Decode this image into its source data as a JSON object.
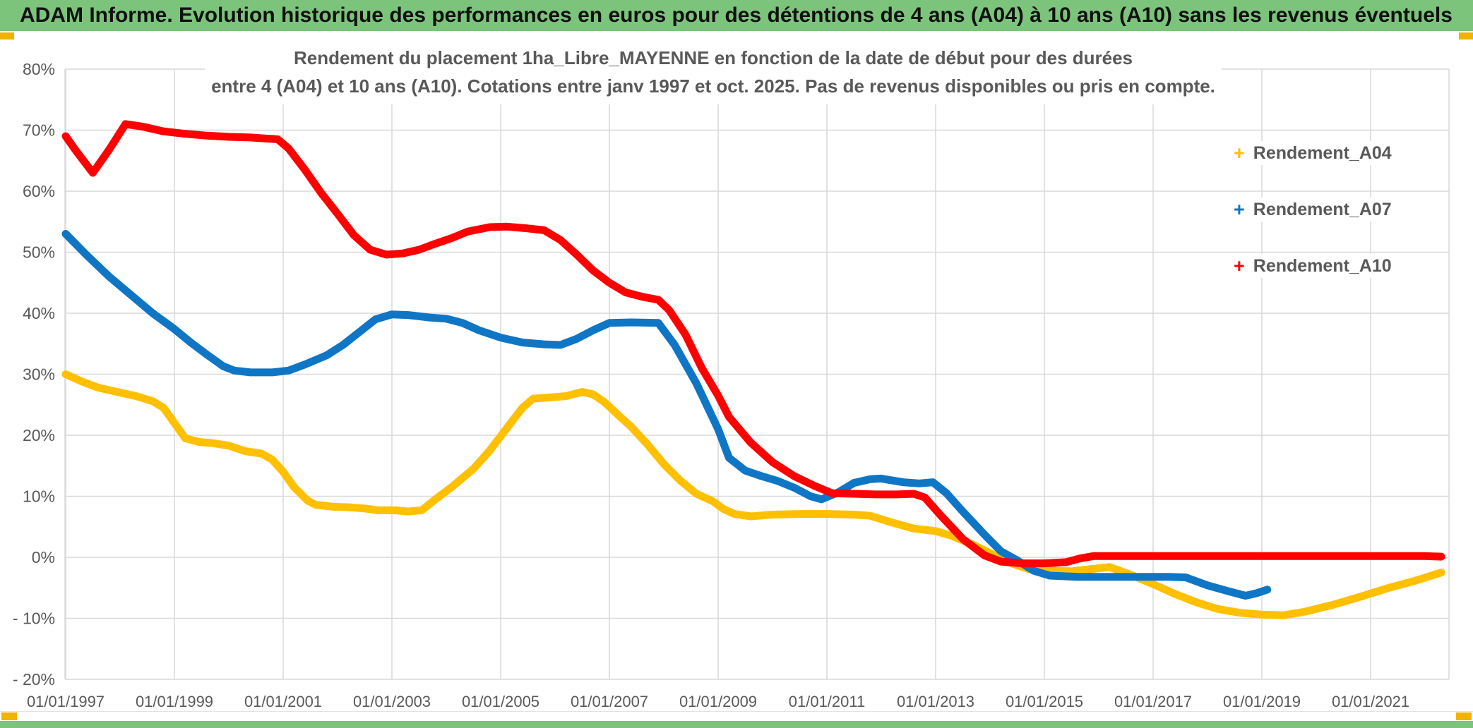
{
  "header": {
    "title": "ADAM Informe. Evolution historique des performances en euros pour des détentions de 4 ans (A04) à 10 ans (A10) sans les revenus éventuels"
  },
  "colors": {
    "titlebar_green": "#7cc47c",
    "accent_gold": "#efb300",
    "grid_gray": "#d9d9d9",
    "axis_text_gray": "#595959",
    "series_a04": "#ffc000",
    "series_a07": "#0f76c6",
    "series_a10": "#ff0000"
  },
  "chart_data": {
    "type": "line",
    "title_lines": [
      "Rendement du placement 1ha_Libre_MAYENNE en fonction de la date de début pour des durées",
      "entre 4 (A04) et 10 ans (A10). Cotations entre janv 1997 et oct. 2025. Pas de revenus disponibles ou pris en compte."
    ],
    "title": "Rendement du placement 1ha_Libre_MAYENNE en fonction de la date de début pour des durées entre 4 (A04) et 10 ans (A10). Cotations entre janv 1997 et oct. 2025. Pas de revenus disponibles ou pris en compte.",
    "grid": true,
    "legend_position": "right",
    "marker": "+",
    "x_axis": {
      "label": "",
      "tick_years": [
        1997,
        1999,
        2001,
        2003,
        2005,
        2007,
        2009,
        2011,
        2013,
        2015,
        2017,
        2019,
        2021
      ],
      "tick_labels": [
        "01/01/1997",
        "01/01/1999",
        "01/01/2001",
        "01/01/2003",
        "01/01/2005",
        "01/01/2007",
        "01/01/2009",
        "01/01/2011",
        "01/01/2013",
        "01/01/2015",
        "01/01/2017",
        "01/01/2019",
        "01/01/2021"
      ],
      "range_years": [
        1997,
        2022.5
      ]
    },
    "y_axis": {
      "label": "",
      "unit": "%",
      "tick_values": [
        80,
        70,
        60,
        50,
        40,
        30,
        20,
        10,
        0,
        -10,
        -20
      ],
      "tick_labels": [
        "80%",
        "70%",
        "60%",
        "50%",
        "40%",
        "30%",
        "20%",
        "10%",
        "0%",
        "- 10%",
        "- 20%"
      ],
      "ylim": [
        -20,
        80
      ]
    },
    "series": [
      {
        "name": "Rendement_A04",
        "color": "#ffc000",
        "points": [
          [
            1997.0,
            30
          ],
          [
            1997.3,
            28.8
          ],
          [
            1997.6,
            27.8
          ],
          [
            1998.0,
            27
          ],
          [
            1998.3,
            26.4
          ],
          [
            1998.6,
            25.6
          ],
          [
            1998.8,
            24.5
          ],
          [
            1999.0,
            22
          ],
          [
            1999.2,
            19.5
          ],
          [
            1999.45,
            18.9
          ],
          [
            1999.7,
            18.7
          ],
          [
            2000.0,
            18.3
          ],
          [
            2000.3,
            17.4
          ],
          [
            2000.6,
            17
          ],
          [
            2000.8,
            16
          ],
          [
            2001.0,
            14
          ],
          [
            2001.2,
            11.5
          ],
          [
            2001.45,
            9.3
          ],
          [
            2001.6,
            8.6
          ],
          [
            2001.9,
            8.3
          ],
          [
            2002.2,
            8.2
          ],
          [
            2002.5,
            8.0
          ],
          [
            2002.75,
            7.7
          ],
          [
            2003.05,
            7.7
          ],
          [
            2003.3,
            7.5
          ],
          [
            2003.55,
            7.7
          ],
          [
            2003.8,
            9.5
          ],
          [
            2004.1,
            11.5
          ],
          [
            2004.5,
            14.5
          ],
          [
            2004.8,
            17.5
          ],
          [
            2005.1,
            21
          ],
          [
            2005.4,
            24.5
          ],
          [
            2005.6,
            26
          ],
          [
            2005.9,
            26.2
          ],
          [
            2006.2,
            26.4
          ],
          [
            2006.5,
            27.1
          ],
          [
            2006.7,
            26.7
          ],
          [
            2006.9,
            25.5
          ],
          [
            2007.2,
            23
          ],
          [
            2007.4,
            21.4
          ],
          [
            2007.7,
            18.5
          ],
          [
            2008.0,
            15.3
          ],
          [
            2008.3,
            12.6
          ],
          [
            2008.6,
            10.4
          ],
          [
            2008.9,
            9.2
          ],
          [
            2009.1,
            7.9
          ],
          [
            2009.3,
            7.1
          ],
          [
            2009.6,
            6.7
          ],
          [
            2010.0,
            7.0
          ],
          [
            2010.5,
            7.1
          ],
          [
            2011.0,
            7.1
          ],
          [
            2011.5,
            7.0
          ],
          [
            2011.8,
            6.8
          ],
          [
            2012.2,
            5.7
          ],
          [
            2012.6,
            4.7
          ],
          [
            2013.0,
            4.3
          ],
          [
            2013.3,
            3.5
          ],
          [
            2013.7,
            2.0
          ],
          [
            2014.0,
            0.7
          ],
          [
            2014.3,
            -0.7
          ],
          [
            2014.7,
            -1.9
          ],
          [
            2015.1,
            -2.2
          ],
          [
            2015.5,
            -2.3
          ],
          [
            2015.9,
            -1.9
          ],
          [
            2016.2,
            -1.6
          ],
          [
            2016.6,
            -2.9
          ],
          [
            2017.0,
            -4.4
          ],
          [
            2017.4,
            -6.0
          ],
          [
            2017.8,
            -7.4
          ],
          [
            2018.2,
            -8.5
          ],
          [
            2018.6,
            -9.1
          ],
          [
            2019.0,
            -9.4
          ],
          [
            2019.4,
            -9.5
          ],
          [
            2019.8,
            -8.9
          ],
          [
            2020.3,
            -7.8
          ],
          [
            2020.8,
            -6.5
          ],
          [
            2021.3,
            -5.1
          ],
          [
            2021.8,
            -3.9
          ],
          [
            2022.3,
            -2.5
          ]
        ]
      },
      {
        "name": "Rendement_A07",
        "color": "#0f76c6",
        "points": [
          [
            1997.0,
            53
          ],
          [
            1997.4,
            49.4
          ],
          [
            1997.8,
            46
          ],
          [
            1998.2,
            43
          ],
          [
            1998.6,
            40
          ],
          [
            1999.0,
            37.4
          ],
          [
            1999.3,
            35.2
          ],
          [
            1999.6,
            33.2
          ],
          [
            1999.9,
            31.3
          ],
          [
            2000.1,
            30.6
          ],
          [
            2000.4,
            30.3
          ],
          [
            2000.8,
            30.3
          ],
          [
            2001.1,
            30.6
          ],
          [
            2001.4,
            31.6
          ],
          [
            2001.8,
            33.1
          ],
          [
            2002.1,
            34.8
          ],
          [
            2002.4,
            36.9
          ],
          [
            2002.7,
            39
          ],
          [
            2003.0,
            39.8
          ],
          [
            2003.3,
            39.7
          ],
          [
            2003.7,
            39.3
          ],
          [
            2004.0,
            39.1
          ],
          [
            2004.3,
            38.4
          ],
          [
            2004.6,
            37.2
          ],
          [
            2005.0,
            36
          ],
          [
            2005.4,
            35.2
          ],
          [
            2005.8,
            34.9
          ],
          [
            2006.1,
            34.8
          ],
          [
            2006.4,
            35.8
          ],
          [
            2006.7,
            37.2
          ],
          [
            2007.0,
            38.4
          ],
          [
            2007.4,
            38.5
          ],
          [
            2007.9,
            38.4
          ],
          [
            2008.2,
            34.8
          ],
          [
            2008.6,
            28.5
          ],
          [
            2009.0,
            21
          ],
          [
            2009.2,
            16.3
          ],
          [
            2009.5,
            14.2
          ],
          [
            2009.8,
            13.3
          ],
          [
            2010.1,
            12.5
          ],
          [
            2010.4,
            11.4
          ],
          [
            2010.7,
            10.0
          ],
          [
            2010.9,
            9.5
          ],
          [
            2011.2,
            10.6
          ],
          [
            2011.5,
            12.2
          ],
          [
            2011.8,
            12.8
          ],
          [
            2012.0,
            12.9
          ],
          [
            2012.4,
            12.3
          ],
          [
            2012.7,
            12.1
          ],
          [
            2012.95,
            12.3
          ],
          [
            2013.2,
            10.5
          ],
          [
            2013.5,
            7.5
          ],
          [
            2013.9,
            3.7
          ],
          [
            2014.2,
            1.0
          ],
          [
            2014.5,
            -0.5
          ],
          [
            2014.8,
            -2.2
          ],
          [
            2015.1,
            -3.0
          ],
          [
            2015.6,
            -3.2
          ],
          [
            2016.2,
            -3.2
          ],
          [
            2016.8,
            -3.2
          ],
          [
            2017.3,
            -3.2
          ],
          [
            2017.6,
            -3.3
          ],
          [
            2018.0,
            -4.6
          ],
          [
            2018.4,
            -5.6
          ],
          [
            2018.7,
            -6.3
          ],
          [
            2018.9,
            -5.9
          ],
          [
            2019.1,
            -5.3
          ]
        ]
      },
      {
        "name": "Rendement_A10",
        "color": "#ff0000",
        "points": [
          [
            1997.0,
            69
          ],
          [
            1997.2,
            66.5
          ],
          [
            1997.5,
            63
          ],
          [
            1997.8,
            66.8
          ],
          [
            1998.1,
            71
          ],
          [
            1998.4,
            70.6
          ],
          [
            1998.8,
            69.8
          ],
          [
            1999.2,
            69.4
          ],
          [
            1999.6,
            69.1
          ],
          [
            2000.0,
            68.9
          ],
          [
            2000.4,
            68.8
          ],
          [
            2000.9,
            68.5
          ],
          [
            2001.1,
            67
          ],
          [
            2001.4,
            63.5
          ],
          [
            2001.7,
            59.7
          ],
          [
            2002.0,
            56.3
          ],
          [
            2002.3,
            52.8
          ],
          [
            2002.6,
            50.4
          ],
          [
            2002.9,
            49.6
          ],
          [
            2003.2,
            49.8
          ],
          [
            2003.5,
            50.4
          ],
          [
            2003.8,
            51.4
          ],
          [
            2004.1,
            52.3
          ],
          [
            2004.4,
            53.4
          ],
          [
            2004.8,
            54.1
          ],
          [
            2005.1,
            54.2
          ],
          [
            2005.5,
            53.9
          ],
          [
            2005.8,
            53.6
          ],
          [
            2006.1,
            52
          ],
          [
            2006.4,
            49.6
          ],
          [
            2006.7,
            47
          ],
          [
            2007.0,
            45
          ],
          [
            2007.3,
            43.4
          ],
          [
            2007.6,
            42.7
          ],
          [
            2007.9,
            42.2
          ],
          [
            2008.1,
            40.5
          ],
          [
            2008.4,
            36.5
          ],
          [
            2008.7,
            31
          ],
          [
            2009.0,
            26.5
          ],
          [
            2009.2,
            23
          ],
          [
            2009.6,
            18.8
          ],
          [
            2010.0,
            15.6
          ],
          [
            2010.4,
            13.3
          ],
          [
            2010.8,
            11.6
          ],
          [
            2011.1,
            10.5
          ],
          [
            2011.5,
            10.4
          ],
          [
            2011.9,
            10.3
          ],
          [
            2012.3,
            10.3
          ],
          [
            2012.6,
            10.4
          ],
          [
            2012.8,
            9.8
          ],
          [
            2013.1,
            6.8
          ],
          [
            2013.5,
            3.0
          ],
          [
            2013.9,
            0.3
          ],
          [
            2014.2,
            -0.7
          ],
          [
            2014.6,
            -1.0
          ],
          [
            2015.0,
            -1.0
          ],
          [
            2015.4,
            -0.8
          ],
          [
            2015.65,
            -0.2
          ],
          [
            2015.9,
            0.2
          ],
          [
            2017.0,
            0.2
          ],
          [
            2018.0,
            0.2
          ],
          [
            2019.0,
            0.2
          ],
          [
            2020.0,
            0.2
          ],
          [
            2021.0,
            0.2
          ],
          [
            2022.0,
            0.2
          ],
          [
            2022.3,
            0.1
          ]
        ]
      }
    ]
  }
}
